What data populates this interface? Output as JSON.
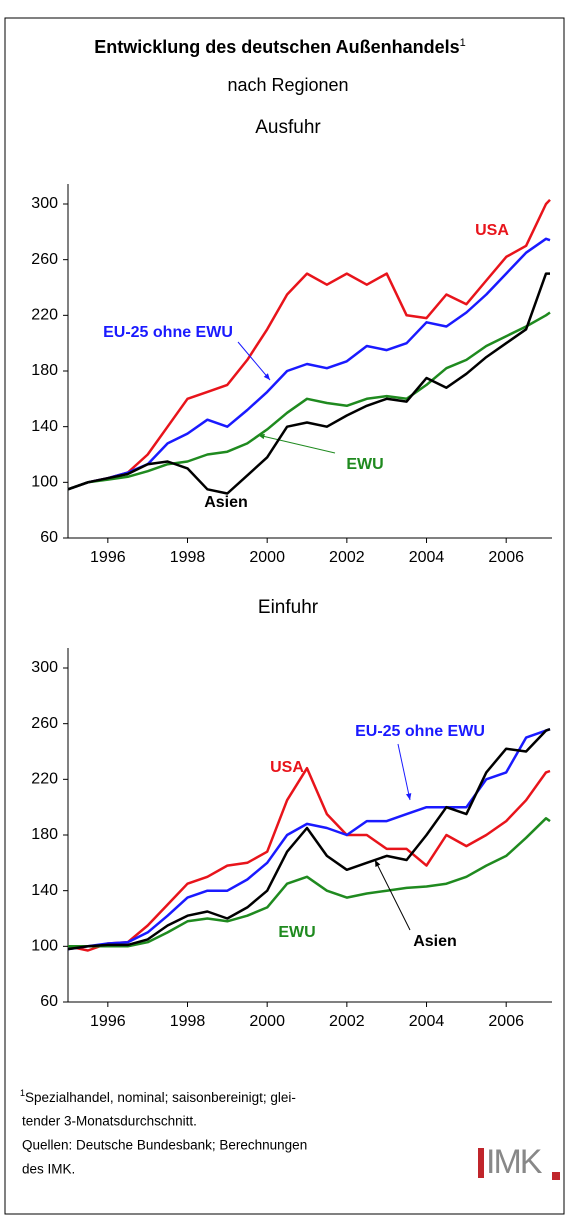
{
  "header": {
    "title": "Entwicklung des deutschen Außenhandels",
    "title_note": "1",
    "subtitle": "nach Regionen"
  },
  "chart_data": [
    {
      "type": "line",
      "title": "Ausfuhr",
      "x": [
        1995,
        1995.5,
        1996,
        1996.5,
        1997,
        1997.5,
        1998,
        1998.5,
        1999,
        1999.5,
        2000,
        2000.5,
        2001,
        2001.5,
        2002,
        2002.5,
        2003,
        2003.5,
        2004,
        2004.5,
        2005,
        2005.5,
        2006,
        2006.5,
        2007,
        2007.1
      ],
      "xlim": [
        1995,
        2007.15
      ],
      "xticks": [
        1996,
        1998,
        2000,
        2002,
        2004,
        2006
      ],
      "ylim": [
        60,
        300
      ],
      "yticks": [
        60,
        100,
        140,
        180,
        220,
        260,
        300
      ],
      "series": [
        {
          "name": "USA",
          "color": "#e8141b",
          "values": [
            95,
            100,
            103,
            107,
            120,
            140,
            160,
            165,
            170,
            188,
            210,
            235,
            250,
            242,
            250,
            242,
            250,
            220,
            218,
            235,
            228,
            245,
            262,
            270,
            300,
            303
          ]
        },
        {
          "name": "EU-25 ohne EWU",
          "color": "#1a1aff",
          "values": [
            95,
            100,
            103,
            107,
            113,
            128,
            135,
            145,
            140,
            152,
            165,
            180,
            185,
            182,
            187,
            198,
            195,
            200,
            215,
            212,
            222,
            235,
            250,
            265,
            275,
            274
          ]
        },
        {
          "name": "EWU",
          "color": "#1f8a1f",
          "values": [
            95,
            100,
            102,
            104,
            108,
            113,
            115,
            120,
            122,
            128,
            138,
            150,
            160,
            157,
            155,
            160,
            162,
            160,
            170,
            182,
            188,
            198,
            205,
            212,
            220,
            222
          ]
        },
        {
          "name": "Asien",
          "color": "#000000",
          "values": [
            95,
            100,
            103,
            106,
            113,
            115,
            110,
            95,
            92,
            105,
            118,
            140,
            143,
            140,
            148,
            155,
            160,
            158,
            175,
            168,
            178,
            190,
            200,
            210,
            250,
            250
          ]
        }
      ]
    },
    {
      "type": "line",
      "title": "Einfuhr",
      "x": [
        1995,
        1995.5,
        1996,
        1996.5,
        1997,
        1997.5,
        1998,
        1998.5,
        1999,
        1999.5,
        2000,
        2000.5,
        2001,
        2001.5,
        2002,
        2002.5,
        2003,
        2003.5,
        2004,
        2004.5,
        2005,
        2005.5,
        2006,
        2006.5,
        2007,
        2007.1
      ],
      "xlim": [
        1995,
        2007.15
      ],
      "xticks": [
        1996,
        1998,
        2000,
        2002,
        2004,
        2006
      ],
      "ylim": [
        60,
        300
      ],
      "yticks": [
        60,
        100,
        140,
        180,
        220,
        260,
        300
      ],
      "series": [
        {
          "name": "USA",
          "color": "#e8141b",
          "values": [
            100,
            97,
            102,
            103,
            115,
            130,
            145,
            150,
            158,
            160,
            168,
            205,
            228,
            195,
            180,
            180,
            170,
            170,
            158,
            180,
            172,
            180,
            190,
            205,
            225,
            226
          ]
        },
        {
          "name": "EU-25 ohne EWU",
          "color": "#1a1aff",
          "values": [
            98,
            100,
            102,
            103,
            110,
            122,
            135,
            140,
            140,
            148,
            160,
            180,
            188,
            185,
            180,
            190,
            190,
            195,
            200,
            200,
            200,
            220,
            225,
            250,
            255,
            256
          ]
        },
        {
          "name": "EWU",
          "color": "#1f8a1f",
          "values": [
            100,
            100,
            100,
            100,
            103,
            110,
            118,
            120,
            118,
            122,
            128,
            145,
            150,
            140,
            135,
            138,
            140,
            142,
            143,
            145,
            150,
            158,
            165,
            178,
            192,
            190
          ]
        },
        {
          "name": "Asien",
          "color": "#000000",
          "values": [
            98,
            100,
            101,
            101,
            105,
            115,
            122,
            125,
            120,
            128,
            140,
            168,
            185,
            165,
            155,
            160,
            165,
            162,
            180,
            200,
            195,
            225,
            242,
            240,
            255,
            256
          ]
        }
      ]
    }
  ],
  "footnote": {
    "marker": "1",
    "lines": [
      "Spezialhandel, nominal; saisonbereinigt; glei-",
      "tender 3-Monatsdurchschnitt.",
      "Quellen: Deutsche Bundesbank; Berechnungen",
      "des IMK."
    ]
  },
  "logo": "IMK"
}
